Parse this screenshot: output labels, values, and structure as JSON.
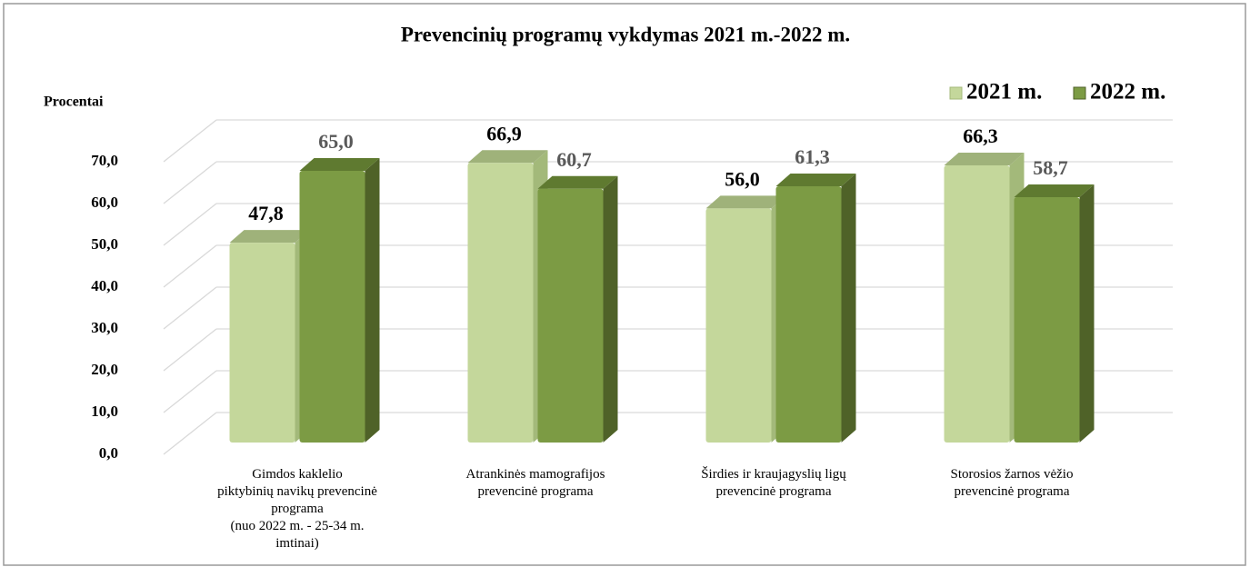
{
  "chart_data": {
    "type": "bar3d",
    "title": "Prevencinių programų vykdymas  2021 m.-2022 m.",
    "y_label": "Procentai",
    "categories": [
      "Gimdos kaklelio\npiktybinių navikų prevencinė\nprograma\n(nuo 2022 m. - 25-34 m.\nimtinai)",
      "Atrankinės mamografijos\nprevencinė programa",
      "Širdies ir kraujagyslių ligų\nprevencinė programa",
      "Storosios žarnos vėžio\nprevencinė programa"
    ],
    "series": [
      {
        "name": "2021 m.",
        "color": "#c4d79b",
        "side": "#a3b97a",
        "top": "#9fb27a",
        "values": [
          47.8,
          66.9,
          56.0,
          66.3
        ],
        "value_labels": [
          "47,8",
          "66,9",
          "56,0",
          "66,3"
        ]
      },
      {
        "name": "2022 m.",
        "color": "#7c9b44",
        "side": "#4f6228",
        "top": "#5f7a30",
        "values": [
          65.0,
          60.7,
          61.3,
          58.7
        ],
        "value_labels": [
          "65,0",
          "60,7",
          "61,3",
          "58,7"
        ]
      }
    ],
    "ylim": [
      0,
      70
    ],
    "yticks": [
      {
        "value": 0,
        "label": "0,0"
      },
      {
        "value": 10,
        "label": "10,0"
      },
      {
        "value": 20,
        "label": "20,0"
      },
      {
        "value": 30,
        "label": "30,0"
      },
      {
        "value": 40,
        "label": "40,0"
      },
      {
        "value": 50,
        "label": "50,0"
      },
      {
        "value": 60,
        "label": "60,0"
      },
      {
        "value": 70,
        "label": "70,0"
      }
    ],
    "grid": true,
    "legend": "top-right"
  }
}
